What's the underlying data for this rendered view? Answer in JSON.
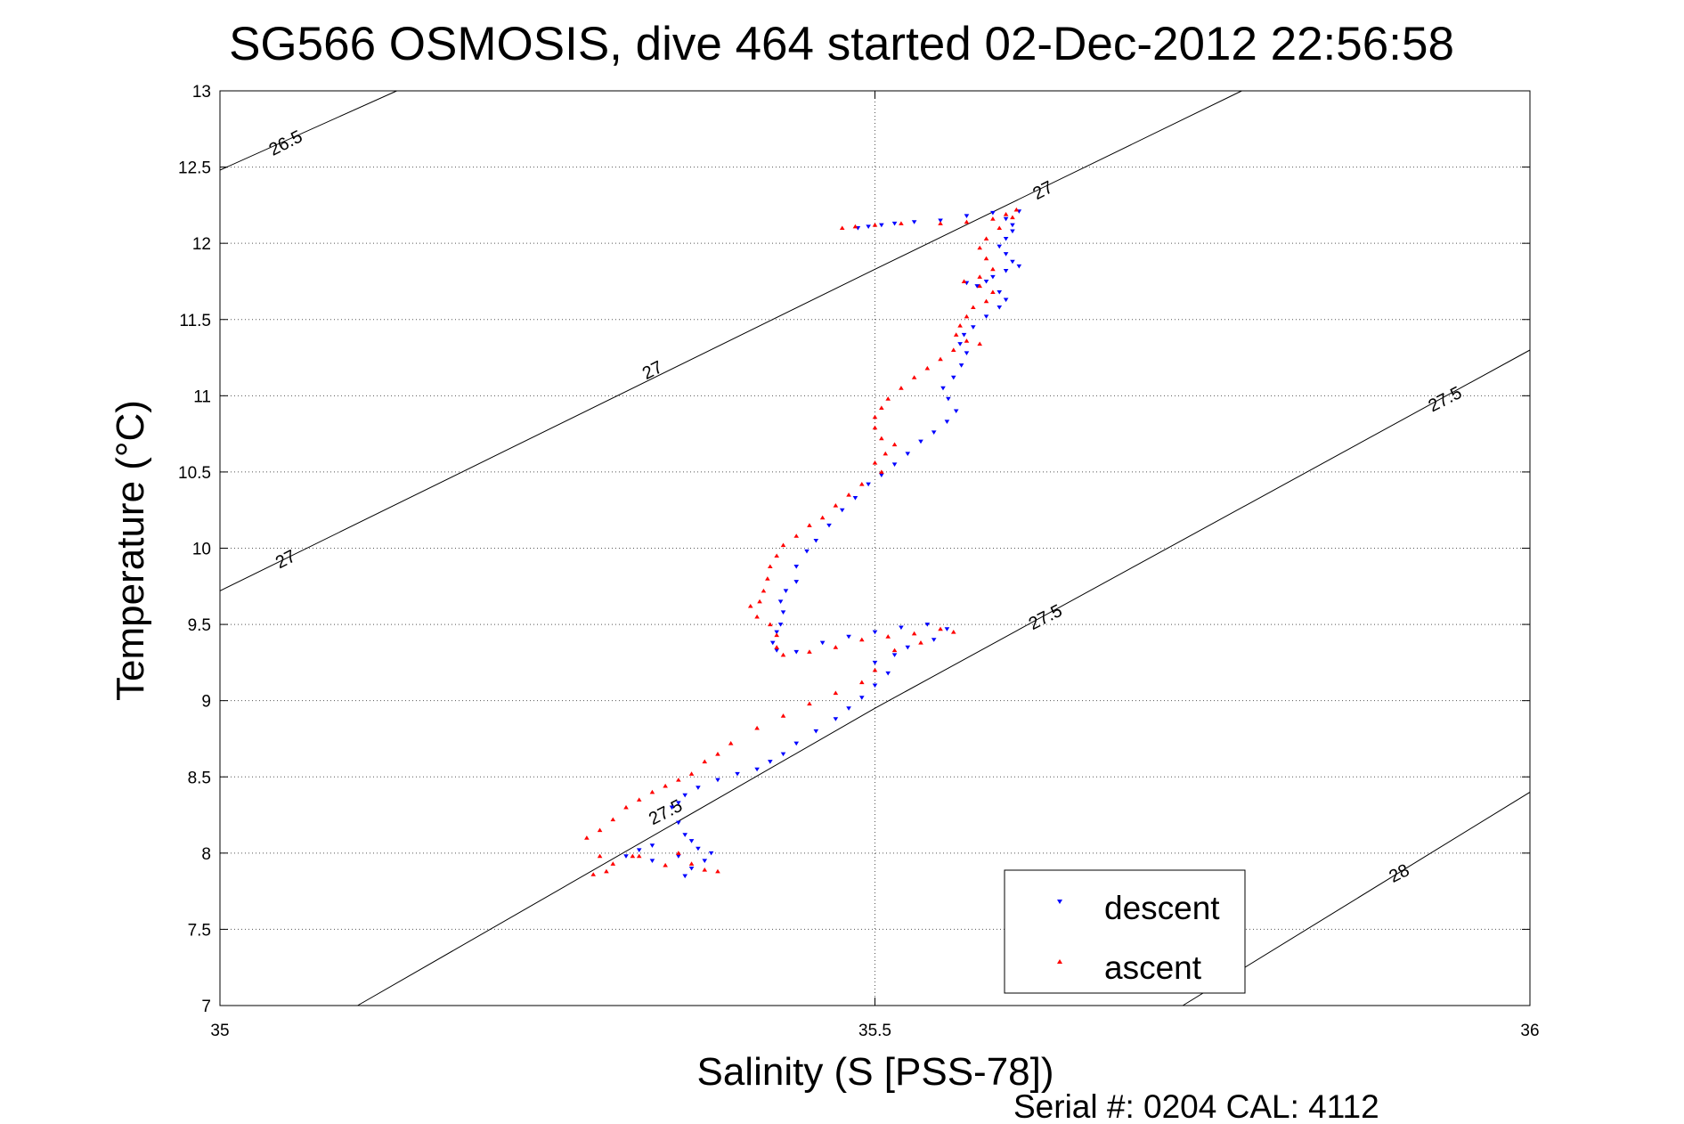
{
  "chart_data": {
    "type": "scatter",
    "title": "SG566 OSMOSIS, dive 464 started 02-Dec-2012 22:56:58",
    "xlabel": "Salinity (S [PSS-78])",
    "ylabel": "Temperature (°C)",
    "xlim": [
      35,
      36
    ],
    "ylim": [
      7,
      13
    ],
    "x_ticks": [
      35,
      35.5,
      36
    ],
    "y_ticks": [
      7,
      7.5,
      8,
      8.5,
      9,
      9.5,
      10,
      10.5,
      11,
      11.5,
      12,
      12.5,
      13
    ],
    "grid": true,
    "legend": {
      "placement": "bottom-right",
      "entries": [
        "descent",
        "ascent"
      ]
    },
    "series": [
      {
        "name": "descent",
        "color": "#0000ff",
        "marker": "triangle-down",
        "points": [
          [
            35.487,
            12.1
          ],
          [
            35.495,
            12.11
          ],
          [
            35.505,
            12.12
          ],
          [
            35.515,
            12.13
          ],
          [
            35.53,
            12.14
          ],
          [
            35.55,
            12.15
          ],
          [
            35.57,
            12.18
          ],
          [
            35.59,
            12.2
          ],
          [
            35.61,
            12.21
          ],
          [
            35.6,
            12.16
          ],
          [
            35.605,
            12.12
          ],
          [
            35.605,
            12.08
          ],
          [
            35.6,
            12.03
          ],
          [
            35.595,
            11.98
          ],
          [
            35.6,
            11.93
          ],
          [
            35.605,
            11.88
          ],
          [
            35.61,
            11.85
          ],
          [
            35.6,
            11.82
          ],
          [
            35.59,
            11.78
          ],
          [
            35.585,
            11.75
          ],
          [
            35.578,
            11.72
          ],
          [
            35.57,
            11.74
          ],
          [
            35.595,
            11.68
          ],
          [
            35.6,
            11.63
          ],
          [
            35.595,
            11.58
          ],
          [
            35.585,
            11.52
          ],
          [
            35.575,
            11.45
          ],
          [
            35.568,
            11.4
          ],
          [
            35.565,
            11.34
          ],
          [
            35.57,
            11.28
          ],
          [
            35.566,
            11.2
          ],
          [
            35.56,
            11.12
          ],
          [
            35.552,
            11.05
          ],
          [
            35.556,
            10.98
          ],
          [
            35.562,
            10.9
          ],
          [
            35.555,
            10.83
          ],
          [
            35.545,
            10.76
          ],
          [
            35.535,
            10.7
          ],
          [
            35.525,
            10.62
          ],
          [
            35.515,
            10.55
          ],
          [
            35.505,
            10.48
          ],
          [
            35.495,
            10.42
          ],
          [
            35.485,
            10.33
          ],
          [
            35.475,
            10.25
          ],
          [
            35.465,
            10.15
          ],
          [
            35.455,
            10.05
          ],
          [
            35.448,
            9.98
          ],
          [
            35.44,
            9.88
          ],
          [
            35.44,
            9.78
          ],
          [
            35.432,
            9.72
          ],
          [
            35.428,
            9.65
          ],
          [
            35.43,
            9.58
          ],
          [
            35.428,
            9.5
          ],
          [
            35.425,
            9.45
          ],
          [
            35.422,
            9.38
          ],
          [
            35.425,
            9.33
          ],
          [
            35.44,
            9.32
          ],
          [
            35.46,
            9.38
          ],
          [
            35.48,
            9.42
          ],
          [
            35.5,
            9.45
          ],
          [
            35.52,
            9.48
          ],
          [
            35.54,
            9.5
          ],
          [
            35.555,
            9.47
          ],
          [
            35.545,
            9.4
          ],
          [
            35.525,
            9.35
          ],
          [
            35.515,
            9.3
          ],
          [
            35.5,
            9.25
          ],
          [
            35.51,
            9.18
          ],
          [
            35.5,
            9.1
          ],
          [
            35.49,
            9.02
          ],
          [
            35.48,
            8.95
          ],
          [
            35.47,
            8.88
          ],
          [
            35.455,
            8.8
          ],
          [
            35.44,
            8.72
          ],
          [
            35.43,
            8.65
          ],
          [
            35.42,
            8.6
          ],
          [
            35.41,
            8.55
          ],
          [
            35.395,
            8.52
          ],
          [
            35.38,
            8.48
          ],
          [
            35.365,
            8.43
          ],
          [
            35.355,
            8.38
          ],
          [
            35.35,
            8.33
          ],
          [
            35.345,
            8.3
          ],
          [
            35.35,
            8.2
          ],
          [
            35.355,
            8.12
          ],
          [
            35.36,
            8.08
          ],
          [
            35.365,
            8.03
          ],
          [
            35.375,
            8.0
          ],
          [
            35.37,
            7.95
          ],
          [
            35.36,
            7.9
          ],
          [
            35.355,
            7.85
          ],
          [
            35.33,
            8.05
          ],
          [
            35.32,
            8.02
          ],
          [
            35.31,
            7.98
          ],
          [
            35.33,
            7.95
          ],
          [
            35.35,
            7.98
          ]
        ]
      },
      {
        "name": "ascent",
        "color": "#ff0000",
        "marker": "triangle-up",
        "points": [
          [
            35.475,
            12.1
          ],
          [
            35.485,
            12.11
          ],
          [
            35.5,
            12.12
          ],
          [
            35.52,
            12.13
          ],
          [
            35.55,
            12.13
          ],
          [
            35.57,
            12.14
          ],
          [
            35.59,
            12.16
          ],
          [
            35.6,
            12.19
          ],
          [
            35.608,
            12.22
          ],
          [
            35.605,
            12.17
          ],
          [
            35.595,
            12.1
          ],
          [
            35.585,
            12.03
          ],
          [
            35.58,
            11.97
          ],
          [
            35.585,
            11.9
          ],
          [
            35.59,
            11.83
          ],
          [
            35.58,
            11.78
          ],
          [
            35.568,
            11.75
          ],
          [
            35.58,
            11.72
          ],
          [
            35.59,
            11.68
          ],
          [
            35.585,
            11.62
          ],
          [
            35.575,
            11.58
          ],
          [
            35.57,
            11.52
          ],
          [
            35.565,
            11.46
          ],
          [
            35.562,
            11.4
          ],
          [
            35.57,
            11.36
          ],
          [
            35.58,
            11.34
          ],
          [
            35.56,
            11.3
          ],
          [
            35.55,
            11.24
          ],
          [
            35.54,
            11.18
          ],
          [
            35.53,
            11.12
          ],
          [
            35.52,
            11.05
          ],
          [
            35.51,
            10.98
          ],
          [
            35.505,
            10.92
          ],
          [
            35.5,
            10.86
          ],
          [
            35.5,
            10.79
          ],
          [
            35.505,
            10.72
          ],
          [
            35.515,
            10.68
          ],
          [
            35.508,
            10.62
          ],
          [
            35.5,
            10.56
          ],
          [
            35.505,
            10.5
          ],
          [
            35.49,
            10.42
          ],
          [
            35.48,
            10.35
          ],
          [
            35.47,
            10.28
          ],
          [
            35.46,
            10.2
          ],
          [
            35.45,
            10.15
          ],
          [
            35.44,
            10.08
          ],
          [
            35.43,
            10.02
          ],
          [
            35.425,
            9.95
          ],
          [
            35.42,
            9.88
          ],
          [
            35.418,
            9.8
          ],
          [
            35.415,
            9.72
          ],
          [
            35.412,
            9.65
          ],
          [
            35.405,
            9.62
          ],
          [
            35.41,
            9.55
          ],
          [
            35.42,
            9.5
          ],
          [
            35.425,
            9.43
          ],
          [
            35.425,
            9.35
          ],
          [
            35.43,
            9.3
          ],
          [
            35.45,
            9.32
          ],
          [
            35.47,
            9.35
          ],
          [
            35.49,
            9.4
          ],
          [
            35.51,
            9.42
          ],
          [
            35.53,
            9.44
          ],
          [
            35.55,
            9.47
          ],
          [
            35.56,
            9.45
          ],
          [
            35.535,
            9.38
          ],
          [
            35.515,
            9.33
          ],
          [
            35.5,
            9.2
          ],
          [
            35.49,
            9.12
          ],
          [
            35.47,
            9.05
          ],
          [
            35.45,
            8.98
          ],
          [
            35.43,
            8.9
          ],
          [
            35.41,
            8.82
          ],
          [
            35.39,
            8.72
          ],
          [
            35.38,
            8.65
          ],
          [
            35.37,
            8.6
          ],
          [
            35.36,
            8.52
          ],
          [
            35.35,
            8.48
          ],
          [
            35.34,
            8.44
          ],
          [
            35.33,
            8.4
          ],
          [
            35.32,
            8.35
          ],
          [
            35.31,
            8.3
          ],
          [
            35.3,
            8.22
          ],
          [
            35.29,
            8.15
          ],
          [
            35.28,
            8.1
          ],
          [
            35.29,
            7.98
          ],
          [
            35.3,
            7.93
          ],
          [
            35.295,
            7.88
          ],
          [
            35.285,
            7.86
          ],
          [
            35.32,
            7.98
          ],
          [
            35.35,
            8.0
          ],
          [
            35.36,
            7.93
          ],
          [
            35.37,
            7.89
          ],
          [
            35.38,
            7.88
          ],
          [
            35.34,
            7.92
          ],
          [
            35.315,
            7.98
          ]
        ]
      }
    ],
    "density_contours": [
      {
        "label": "26.5",
        "points": [
          [
            35.0,
            12.48
          ],
          [
            35.135,
            13.0
          ]
        ]
      },
      {
        "label": "27",
        "points": [
          [
            35.0,
            9.72
          ],
          [
            35.5,
            11.83
          ],
          [
            35.78,
            13.0
          ]
        ]
      },
      {
        "label": "27.5",
        "points": [
          [
            35.105,
            7.0
          ],
          [
            35.5,
            8.95
          ],
          [
            36.0,
            11.3
          ]
        ]
      },
      {
        "label": "28",
        "points": [
          [
            35.735,
            7.0
          ],
          [
            36.0,
            8.4
          ]
        ]
      }
    ],
    "contour_labels": [
      {
        "text": "26.5",
        "at": [
          35.05,
          12.66
        ],
        "angle": -27
      },
      {
        "text": "27",
        "at": [
          35.628,
          12.35
        ],
        "angle": -27
      },
      {
        "text": "27",
        "at": [
          35.33,
          11.17
        ],
        "angle": -27
      },
      {
        "text": "27",
        "at": [
          35.05,
          9.93
        ],
        "angle": -27
      },
      {
        "text": "27.5",
        "at": [
          35.935,
          10.98
        ],
        "angle": -27
      },
      {
        "text": "27.5",
        "at": [
          35.63,
          9.55
        ],
        "angle": -27
      },
      {
        "text": "27.5",
        "at": [
          35.34,
          8.27
        ],
        "angle": -27
      },
      {
        "text": "28",
        "at": [
          35.9,
          7.87
        ],
        "angle": -27
      }
    ]
  },
  "footer": {
    "serial_label": "Serial #: 0204  CAL: 4112"
  }
}
